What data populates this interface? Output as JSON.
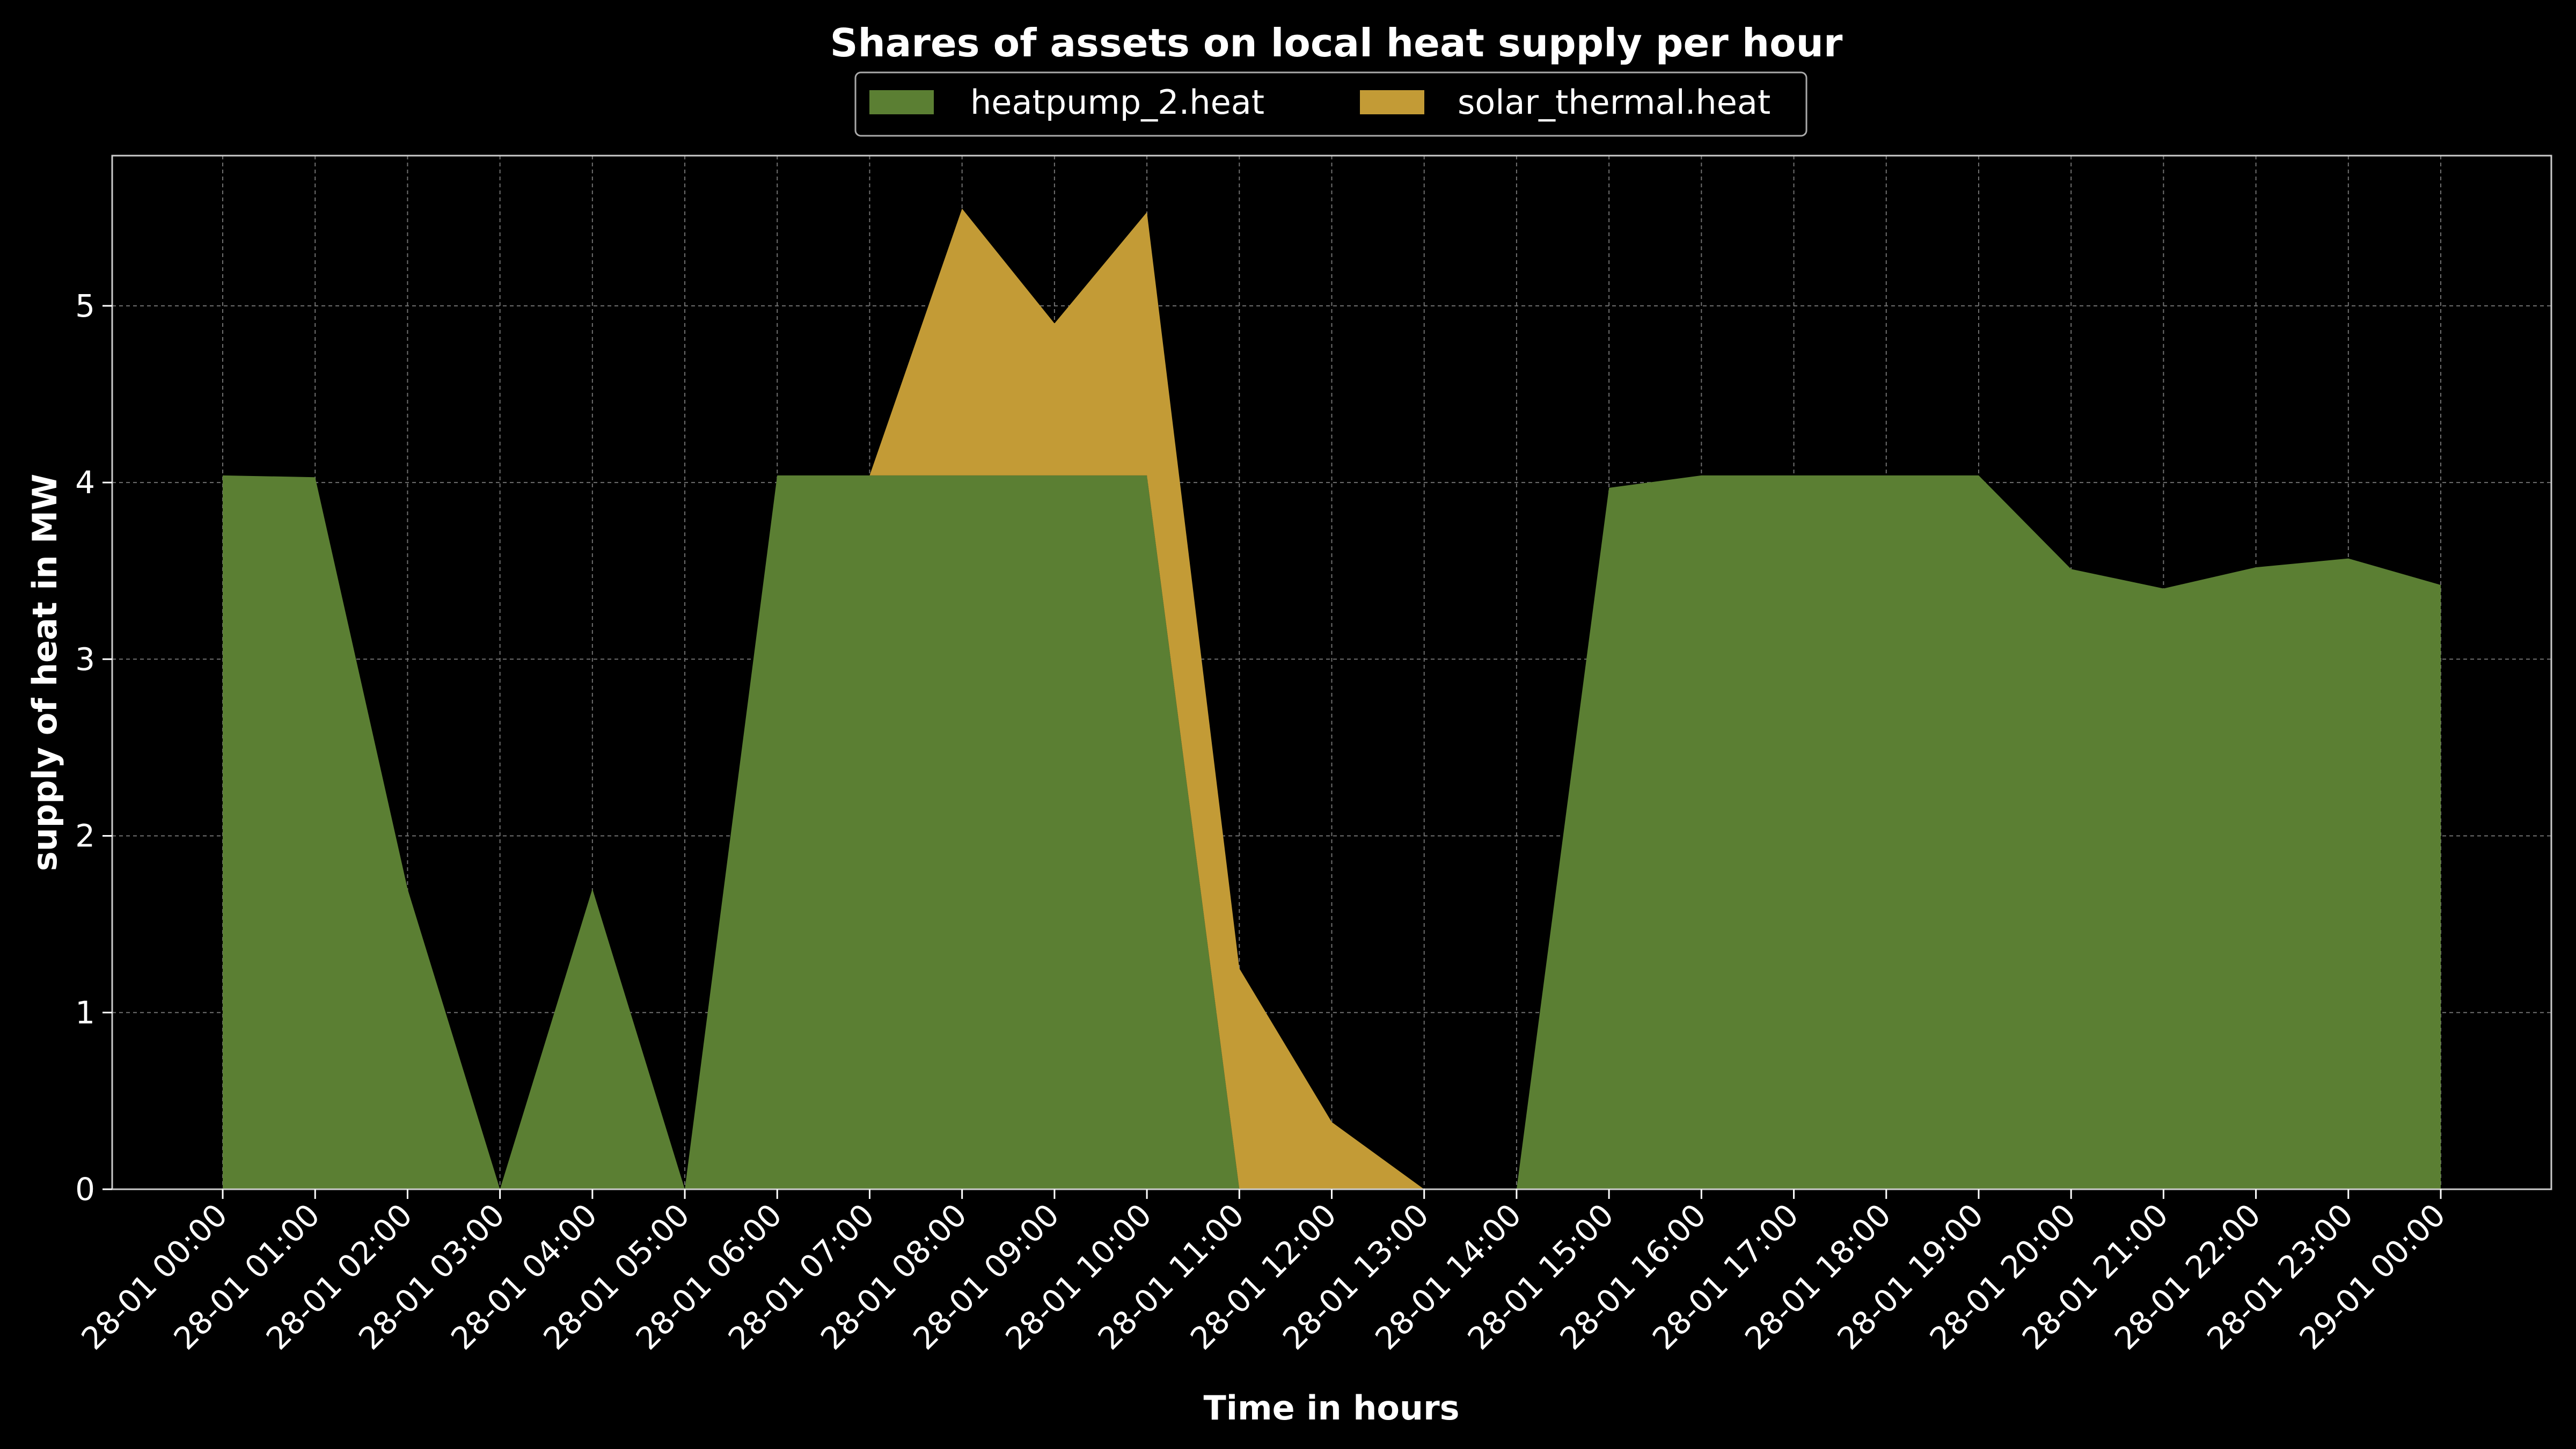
{
  "chart_data": {
    "type": "area",
    "stacked": true,
    "title": "Shares of assets on local heat supply per hour",
    "xlabel": "Time in hours",
    "ylabel": "supply of heat in MW",
    "x": [
      "28-01 00:00",
      "28-01 01:00",
      "28-01 02:00",
      "28-01 03:00",
      "28-01 04:00",
      "28-01 05:00",
      "28-01 06:00",
      "28-01 07:00",
      "28-01 08:00",
      "28-01 09:00",
      "28-01 10:00",
      "28-01 11:00",
      "28-01 12:00",
      "28-01 13:00",
      "28-01 14:00",
      "28-01 15:00",
      "28-01 16:00",
      "28-01 17:00",
      "28-01 18:00",
      "28-01 19:00",
      "28-01 20:00",
      "28-01 21:00",
      "28-01 22:00",
      "28-01 23:00",
      "29-01 00:00"
    ],
    "yticks": [
      0,
      1,
      2,
      3,
      4,
      5
    ],
    "ylim": [
      0,
      5.85
    ],
    "grid": true,
    "legend_position": "top-center",
    "series": [
      {
        "name": "heatpump_2.heat",
        "color": "#5b7f33",
        "values": [
          4.04,
          4.03,
          1.7,
          0,
          1.7,
          0,
          4.04,
          4.04,
          4.04,
          4.04,
          4.04,
          0,
          0,
          0,
          0,
          3.97,
          4.04,
          4.04,
          4.04,
          4.04,
          3.51,
          3.4,
          3.52,
          3.57,
          3.42
        ]
      },
      {
        "name": "solar_thermal.heat",
        "color": "#c39b36",
        "values": [
          0,
          0,
          0,
          0,
          0,
          0,
          0,
          0,
          1.51,
          0.86,
          1.49,
          1.25,
          0.38,
          0,
          0,
          0,
          0,
          0,
          0,
          0,
          0,
          0,
          0,
          0,
          0
        ]
      }
    ]
  }
}
